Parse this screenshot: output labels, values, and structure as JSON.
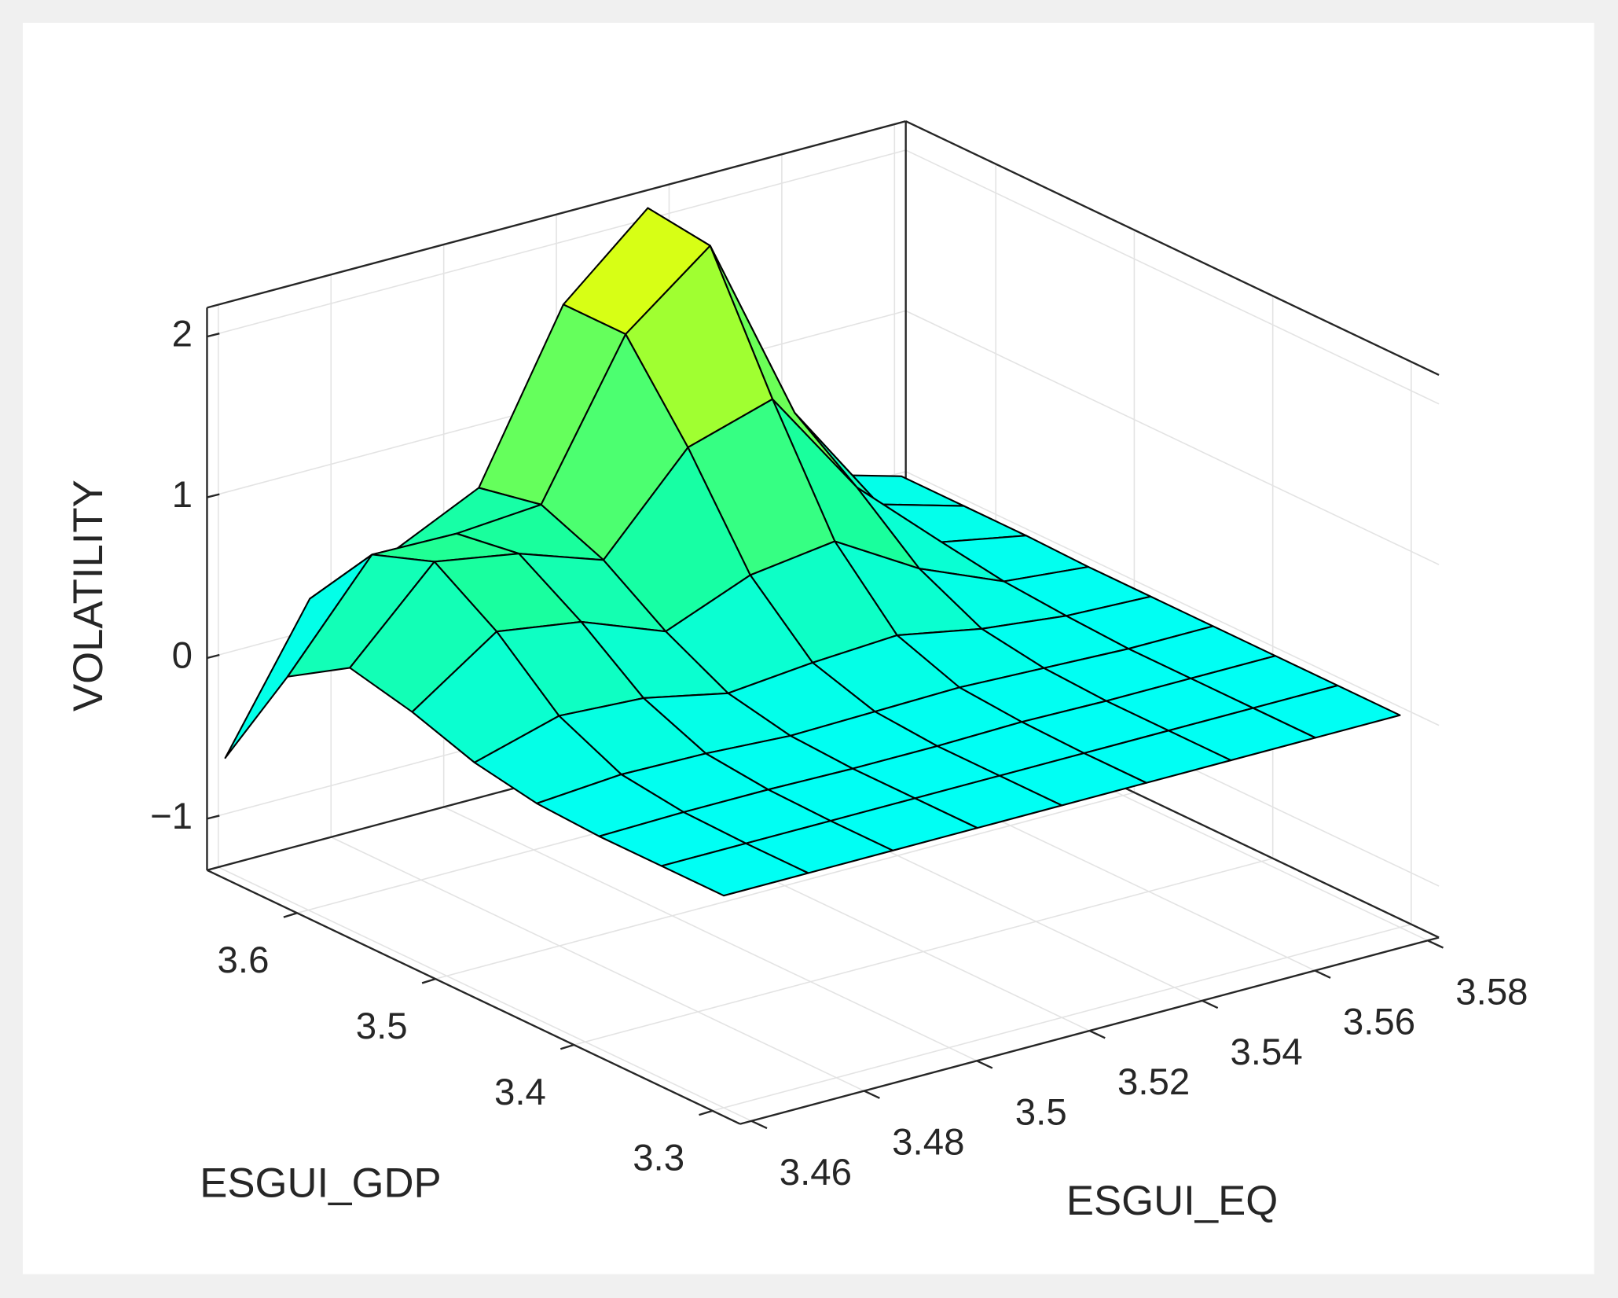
{
  "chart_data": {
    "type": "surface",
    "xlabel": "ESGUI_EQ",
    "ylabel": "ESGUI_GDP",
    "zlabel": "VOLATILITY",
    "x": [
      3.46,
      3.475,
      3.49,
      3.505,
      3.52,
      3.535,
      3.55,
      3.565,
      3.58
    ],
    "y": [
      3.3,
      3.345,
      3.39,
      3.435,
      3.48,
      3.525,
      3.57,
      3.615,
      3.66
    ],
    "z": [
      [
        0,
        0,
        0,
        0,
        0,
        0,
        0,
        0,
        0
      ],
      [
        0,
        0,
        0,
        0,
        0,
        0,
        0,
        0,
        0
      ],
      [
        0,
        0.01,
        0.01,
        0,
        0,
        0.01,
        0,
        0,
        0
      ],
      [
        0.02,
        0.06,
        0.05,
        0.02,
        0.03,
        0.04,
        0.02,
        0,
        0
      ],
      [
        0.09,
        0.24,
        0.21,
        0.1,
        0.15,
        0.18,
        0.08,
        0.02,
        0
      ],
      [
        0.22,
        0.58,
        0.5,
        0.3,
        0.51,
        0.58,
        0.27,
        0.05,
        0
      ],
      [
        0.31,
        0.83,
        0.74,
        0.56,
        1.12,
        1.28,
        0.59,
        0.11,
        0.01
      ],
      [
        0.07,
        0.69,
        0.68,
        0.72,
        1.64,
        2.05,
        0.87,
        0.16,
        0.01
      ],
      [
        -0.62,
        0.23,
        0.39,
        0.64,
        1.64,
        2.1,
        0.87,
        0.16,
        0.01
      ]
    ],
    "xlim": [
      3.458,
      3.582
    ],
    "ylim": [
      3.28,
      3.665
    ],
    "zlim": [
      -1.32,
      2.18
    ],
    "xticks": [
      3.46,
      3.48,
      3.5,
      3.52,
      3.54,
      3.56,
      3.58
    ],
    "yticks": [
      3.3,
      3.4,
      3.5,
      3.6
    ],
    "zticks": [
      {
        "value": -1,
        "label": "−1"
      },
      0,
      1,
      2
    ],
    "grid": true,
    "colormap": [
      "#2aa8ff",
      "#00fff4",
      "#1aff9a",
      "#8cff3c",
      "#ffff00"
    ],
    "clim": [
      -0.7,
      2.1
    ],
    "edgecolor": "#000000"
  }
}
